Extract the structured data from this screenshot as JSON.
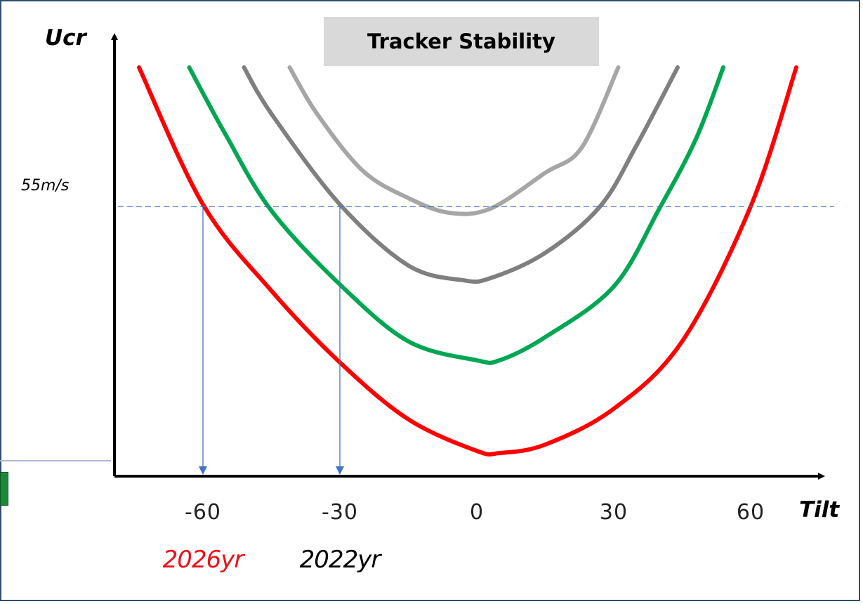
{
  "chart_data": {
    "type": "line",
    "title": "Tracker Stability",
    "xlabel": "Tilt",
    "ylabel": "Ucr",
    "x_ticks": [
      "-60",
      "-30",
      "0",
      "30",
      "60"
    ],
    "xlim": [
      -78,
      78
    ],
    "ylim": [
      0,
      100
    ],
    "grid": false,
    "reference_line": {
      "label": "55m/s",
      "y": 64
    },
    "markers": [
      {
        "label": "2026yr",
        "x": -60,
        "color": "#e8141a"
      },
      {
        "label": "2022yr",
        "x": -30,
        "color": "#000000"
      }
    ],
    "series": [
      {
        "color": "#ff0000",
        "points": [
          [
            -74,
            97
          ],
          [
            -60,
            64.5
          ],
          [
            -45,
            44
          ],
          [
            -30,
            27
          ],
          [
            -15,
            13.5
          ],
          [
            0,
            6
          ],
          [
            5,
            5.5
          ],
          [
            15,
            7.5
          ],
          [
            30,
            16
          ],
          [
            45,
            32
          ],
          [
            60,
            64
          ],
          [
            70,
            97
          ]
        ]
      },
      {
        "color": "#00a651",
        "points": [
          [
            -63,
            97
          ],
          [
            -55,
            81
          ],
          [
            -45,
            63
          ],
          [
            -30,
            45.5
          ],
          [
            -15,
            32
          ],
          [
            0,
            27.5
          ],
          [
            5,
            27.5
          ],
          [
            15,
            33
          ],
          [
            30,
            45
          ],
          [
            40,
            63.5
          ],
          [
            48,
            80
          ],
          [
            54,
            97
          ]
        ]
      },
      {
        "color": "#7f7f7f",
        "points": [
          [
            -51,
            97
          ],
          [
            -45,
            86
          ],
          [
            -30,
            64.5
          ],
          [
            -15,
            50
          ],
          [
            -3,
            46.5
          ],
          [
            3,
            47
          ],
          [
            15,
            53
          ],
          [
            27,
            64
          ],
          [
            35,
            78.5
          ],
          [
            44,
            97
          ]
        ]
      },
      {
        "color": "#a6a6a6",
        "points": [
          [
            -41,
            97
          ],
          [
            -35,
            86
          ],
          [
            -25,
            72.5
          ],
          [
            -15,
            66
          ],
          [
            -6,
            62.5
          ],
          [
            3,
            63.5
          ],
          [
            15,
            72
          ],
          [
            23,
            78
          ],
          [
            31,
            97
          ]
        ]
      }
    ]
  }
}
